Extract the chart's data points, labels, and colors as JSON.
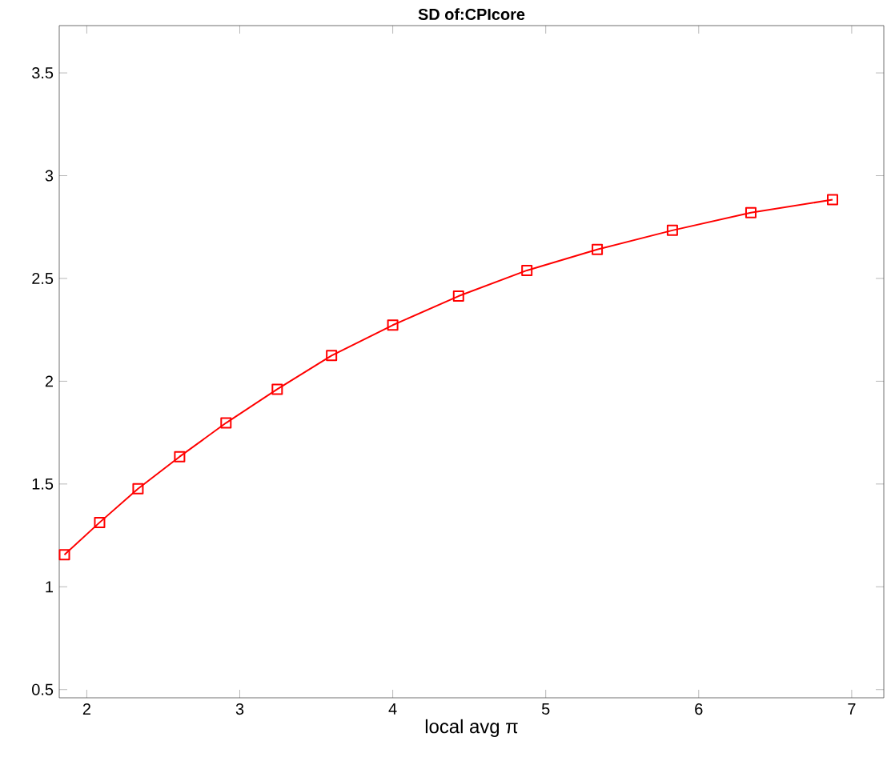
{
  "chart_data": {
    "type": "line",
    "title": "SD of:CPIcore",
    "xlabel": "local avg π",
    "x": [
      1.854,
      2.084,
      2.335,
      2.607,
      2.91,
      3.245,
      3.6,
      4.0,
      4.43,
      4.877,
      5.337,
      5.828,
      6.341,
      6.875
    ],
    "series": [
      {
        "color": "#ff0000",
        "values": [
          1.156,
          1.313,
          1.477,
          1.633,
          1.797,
          1.961,
          2.125,
          2.273,
          2.414,
          2.539,
          2.641,
          2.734,
          2.82,
          2.883
        ]
      }
    ],
    "xlim": [
      1.82,
      7.21
    ],
    "ylim": [
      0.46,
      3.73
    ],
    "xticks": [
      2,
      3,
      4,
      5,
      6,
      7
    ],
    "yticks": [
      0.5,
      1,
      1.5,
      2,
      2.5,
      3,
      3.5
    ],
    "marker": "square",
    "line_style": "solid"
  }
}
